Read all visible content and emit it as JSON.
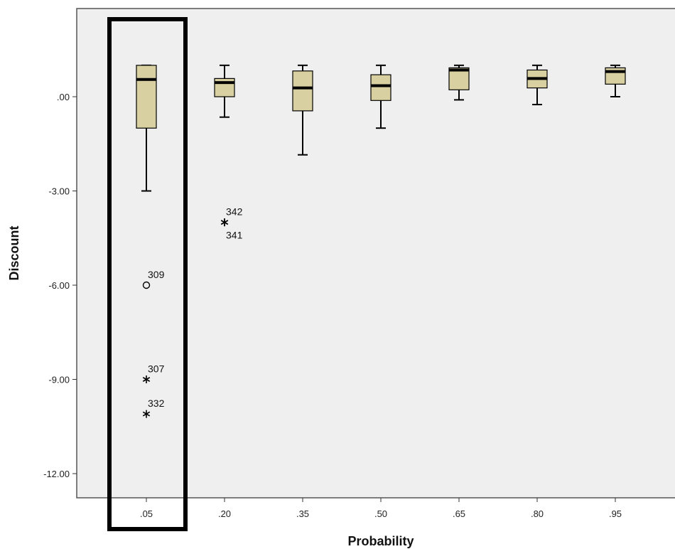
{
  "chart_data": {
    "type": "boxplot",
    "xlabel": "Probability",
    "ylabel": "Discount",
    "ylim": [
      -12.8,
      2.8
    ],
    "yticks": [
      0,
      -3,
      -6,
      -9,
      -12
    ],
    "ytick_labels": [
      ".00",
      "-3.00",
      "-6.00",
      "-9.00",
      "-12.00"
    ],
    "categories": [
      ".05",
      ".20",
      ".35",
      ".50",
      ".65",
      ".80",
      ".95"
    ],
    "boxes": [
      {
        "category": ".05",
        "whisker_low": -3.0,
        "q1": -1.0,
        "median": 0.55,
        "q3": 1.0,
        "whisker_high": 1.0
      },
      {
        "category": ".20",
        "whisker_low": -0.65,
        "q1": 0.0,
        "median": 0.45,
        "q3": 0.58,
        "whisker_high": 1.0
      },
      {
        "category": ".35",
        "whisker_low": -1.85,
        "q1": -0.45,
        "median": 0.28,
        "q3": 0.82,
        "whisker_high": 1.0
      },
      {
        "category": ".50",
        "whisker_low": -1.0,
        "q1": -0.12,
        "median": 0.35,
        "q3": 0.7,
        "whisker_high": 1.0
      },
      {
        "category": ".65",
        "whisker_low": -0.1,
        "q1": 0.22,
        "median": 0.85,
        "q3": 0.92,
        "whisker_high": 1.0
      },
      {
        "category": ".80",
        "whisker_low": -0.25,
        "q1": 0.28,
        "median": 0.58,
        "q3": 0.85,
        "whisker_high": 1.0
      },
      {
        "category": ".95",
        "whisker_low": 0.0,
        "q1": 0.4,
        "median": 0.8,
        "q3": 0.92,
        "whisker_high": 1.0
      }
    ],
    "outliers": [
      {
        "category": ".05",
        "value": -6.0,
        "marker": "circle",
        "label": "309"
      },
      {
        "category": ".05",
        "value": -9.0,
        "marker": "star",
        "label": "307"
      },
      {
        "category": ".05",
        "value": -10.1,
        "marker": "star",
        "label": "332"
      },
      {
        "category": ".20",
        "value": -4.0,
        "marker": "star",
        "label": "342"
      },
      {
        "category": ".20",
        "value": -4.0,
        "marker": "star",
        "label": "341"
      }
    ],
    "highlighted_category": ".05",
    "colors": {
      "box_fill": "#d8d0a0",
      "plot_bg": "#efefef",
      "stroke": "#000000"
    },
    "grid": false
  }
}
